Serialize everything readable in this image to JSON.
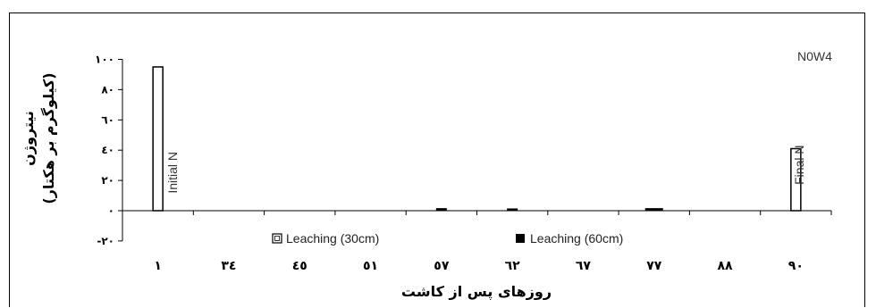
{
  "chart_data": {
    "type": "bar",
    "title": "N0W4",
    "ylabel_line1": "نیتروژن",
    "ylabel_line2": "(کیلوگرم بر هکتار)",
    "xlabel": "روزهای پس از کاشت",
    "categories": [
      "۱",
      "۳٤",
      "٤٥",
      "٥١",
      "٥٧",
      "٦٢",
      "٦٧",
      "٧٧",
      "٨٨",
      "۹۰"
    ],
    "ylim": [
      -20,
      100
    ],
    "yticks": [
      -20,
      0,
      20,
      40,
      60,
      80,
      100
    ],
    "ytick_labels": [
      "-۲۰",
      "۰",
      "۲۰",
      "٤۰",
      "٦۰",
      "۸۰",
      "۱۰۰"
    ],
    "grid": false,
    "legend_position": "bottom",
    "series": [
      {
        "name": "Leaching (30cm)",
        "color": "#ffffff",
        "values": [
          0,
          0,
          0,
          0,
          0,
          0,
          0,
          0,
          0,
          0
        ]
      },
      {
        "name": "Leaching (60cm)",
        "color": "#000000",
        "values": [
          0,
          0,
          0,
          0,
          0.8,
          0.6,
          0,
          0.8,
          0,
          0
        ]
      }
    ],
    "extra_bars": [
      {
        "label": "Initial N",
        "category_index": 0,
        "value": 95
      },
      {
        "label": "Final N",
        "category_index": 9,
        "value": 41
      }
    ]
  }
}
